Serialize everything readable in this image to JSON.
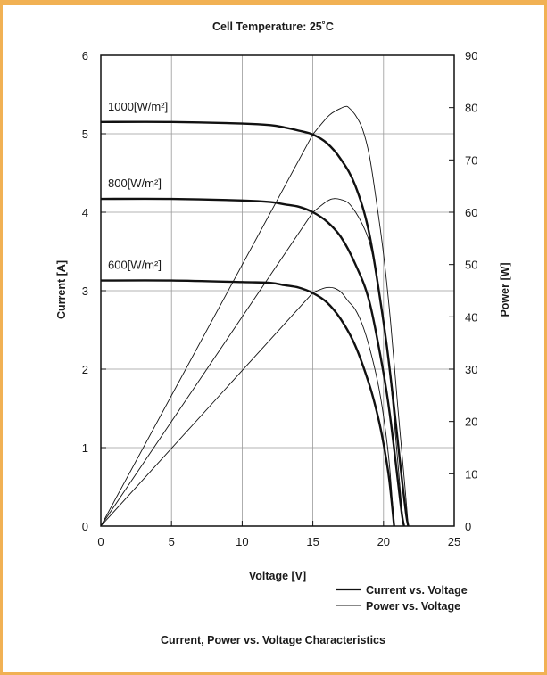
{
  "chart_data": {
    "type": "line",
    "title": "Cell Temperature:  25˚C",
    "caption": "Current, Power vs. Voltage Characteristics",
    "xlabel": "Voltage [V]",
    "ylabel_left": "Current [A]",
    "ylabel_right": "Power [W]",
    "xlim": [
      0,
      25
    ],
    "ylim_left": [
      0,
      6
    ],
    "ylim_right": [
      0,
      90
    ],
    "xticks": [
      0,
      5,
      10,
      15,
      20,
      25
    ],
    "yticks_left": [
      0,
      1,
      2,
      3,
      4,
      5,
      6
    ],
    "yticks_right": [
      0,
      10,
      20,
      30,
      40,
      50,
      60,
      70,
      80,
      90
    ],
    "grid": true,
    "legend": {
      "position": "bottom-right",
      "entries": [
        {
          "label": "Current vs. Voltage",
          "style": "thick"
        },
        {
          "label": "Power vs. Voltage",
          "style": "thin"
        }
      ]
    },
    "series": [
      {
        "name": "1000[W/m²]",
        "kind": "current",
        "axis": "left",
        "x": [
          0,
          5,
          10,
          12,
          13,
          14,
          15,
          16,
          17,
          18,
          19,
          20,
          20.5,
          21,
          21.3,
          21.6,
          21.75
        ],
        "y": [
          5.15,
          5.15,
          5.13,
          5.11,
          5.08,
          5.04,
          4.99,
          4.88,
          4.67,
          4.34,
          3.72,
          2.6,
          1.9,
          1.1,
          0.6,
          0.15,
          0
        ]
      },
      {
        "name": "800[W/m²]",
        "kind": "current",
        "axis": "left",
        "x": [
          0,
          5,
          10,
          12,
          13,
          14,
          15,
          16,
          17,
          18,
          19,
          20,
          20.5,
          21,
          21.3,
          21.45
        ],
        "y": [
          4.17,
          4.17,
          4.15,
          4.13,
          4.1,
          4.07,
          4.0,
          3.88,
          3.68,
          3.34,
          2.86,
          1.95,
          1.35,
          0.6,
          0.15,
          0
        ]
      },
      {
        "name": "600[W/m²]",
        "kind": "current",
        "axis": "left",
        "x": [
          0,
          5,
          10,
          12,
          13,
          14,
          15,
          16,
          17,
          18,
          19,
          19.6,
          20,
          20.4,
          20.75
        ],
        "y": [
          3.13,
          3.13,
          3.11,
          3.1,
          3.07,
          3.04,
          2.97,
          2.85,
          2.63,
          2.3,
          1.8,
          1.4,
          1.05,
          0.6,
          0
        ]
      },
      {
        "name": "",
        "kind": "power",
        "axis": "right",
        "x": [
          0,
          5,
          10,
          15,
          16,
          16.5,
          17,
          17.3,
          17.5,
          18,
          18.5,
          19,
          19.5,
          20,
          20.5,
          21,
          21.5,
          21.75
        ],
        "y": [
          0,
          25.7,
          51.3,
          74.9,
          78.1,
          79.2,
          79.9,
          80.2,
          80.1,
          78.6,
          76.0,
          70.8,
          62.0,
          52.0,
          39.0,
          23.1,
          8.0,
          0
        ]
      },
      {
        "name": "",
        "kind": "power",
        "axis": "right",
        "x": [
          0,
          5,
          10,
          15,
          16,
          16.5,
          17,
          17.5,
          18,
          18.5,
          19,
          19.5,
          20,
          20.5,
          21,
          21.3,
          21.45
        ],
        "y": [
          0,
          20.9,
          41.5,
          60.0,
          62.1,
          62.6,
          62.4,
          61.8,
          60.1,
          57.7,
          54.3,
          47.9,
          39.0,
          27.7,
          12.6,
          3.2,
          0
        ]
      },
      {
        "name": "",
        "kind": "power",
        "axis": "right",
        "x": [
          0,
          5,
          10,
          15,
          15.5,
          16,
          16.5,
          17,
          17.5,
          18,
          18.5,
          19,
          19.6,
          20,
          20.4,
          20.75
        ],
        "y": [
          0,
          15.7,
          31.1,
          44.6,
          45.2,
          45.6,
          45.5,
          44.7,
          43.0,
          41.4,
          38.5,
          34.2,
          27.4,
          21.0,
          12.2,
          0
        ]
      }
    ]
  }
}
